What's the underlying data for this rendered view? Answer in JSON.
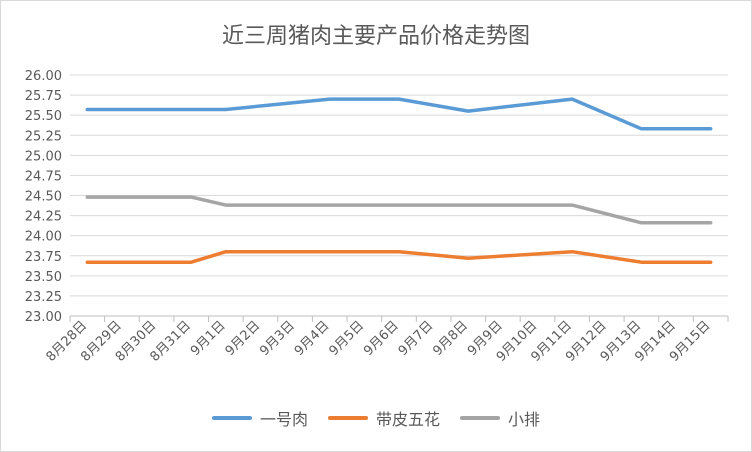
{
  "chart_data": {
    "type": "line",
    "title": "近三周猪肉主要产品价格走势图",
    "categories": [
      "8月28日",
      "8月29日",
      "8月30日",
      "8月31日",
      "9月1日",
      "9月2日",
      "9月3日",
      "9月4日",
      "9月5日",
      "9月6日",
      "9月7日",
      "9月8日",
      "9月9日",
      "9月10日",
      "9月11日",
      "9月12日",
      "9月13日",
      "9月14日",
      "9月15日"
    ],
    "ylim": [
      23.0,
      26.0
    ],
    "yticks": [
      "23.00",
      "23.25",
      "23.50",
      "23.75",
      "24.00",
      "24.25",
      "24.50",
      "24.75",
      "25.00",
      "25.25",
      "25.50",
      "25.75",
      "26.00"
    ],
    "ytick_values": [
      23.0,
      23.25,
      23.5,
      23.75,
      24.0,
      24.25,
      24.5,
      24.75,
      25.0,
      25.25,
      25.5,
      25.75,
      26.0
    ],
    "grid": true,
    "legend_position": "bottom",
    "series": [
      {
        "name": "一号肉",
        "color": "#5b9bd5",
        "x": [
          "8月28日",
          "8月31日",
          "9月1日",
          "9月4日",
          "9月6日",
          "9月8日",
          "9月11日",
          "9月13日",
          "9月15日"
        ],
        "values": [
          25.57,
          25.57,
          25.57,
          25.7,
          25.7,
          25.55,
          25.7,
          25.33,
          25.33
        ]
      },
      {
        "name": "带皮五花",
        "color": "#ed7d31",
        "x": [
          "8月28日",
          "8月31日",
          "9月1日",
          "9月4日",
          "9月6日",
          "9月8日",
          "9月11日",
          "9月13日",
          "9月15日"
        ],
        "values": [
          23.67,
          23.67,
          23.8,
          23.8,
          23.8,
          23.72,
          23.8,
          23.67,
          23.67
        ]
      },
      {
        "name": "小排",
        "color": "#a5a5a5",
        "x": [
          "8月28日",
          "8月31日",
          "9月1日",
          "9月4日",
          "9月6日",
          "9月8日",
          "9月11日",
          "9月13日",
          "9月15日"
        ],
        "values": [
          24.48,
          24.48,
          24.38,
          24.38,
          24.38,
          24.38,
          24.38,
          24.16,
          24.16
        ]
      }
    ]
  }
}
